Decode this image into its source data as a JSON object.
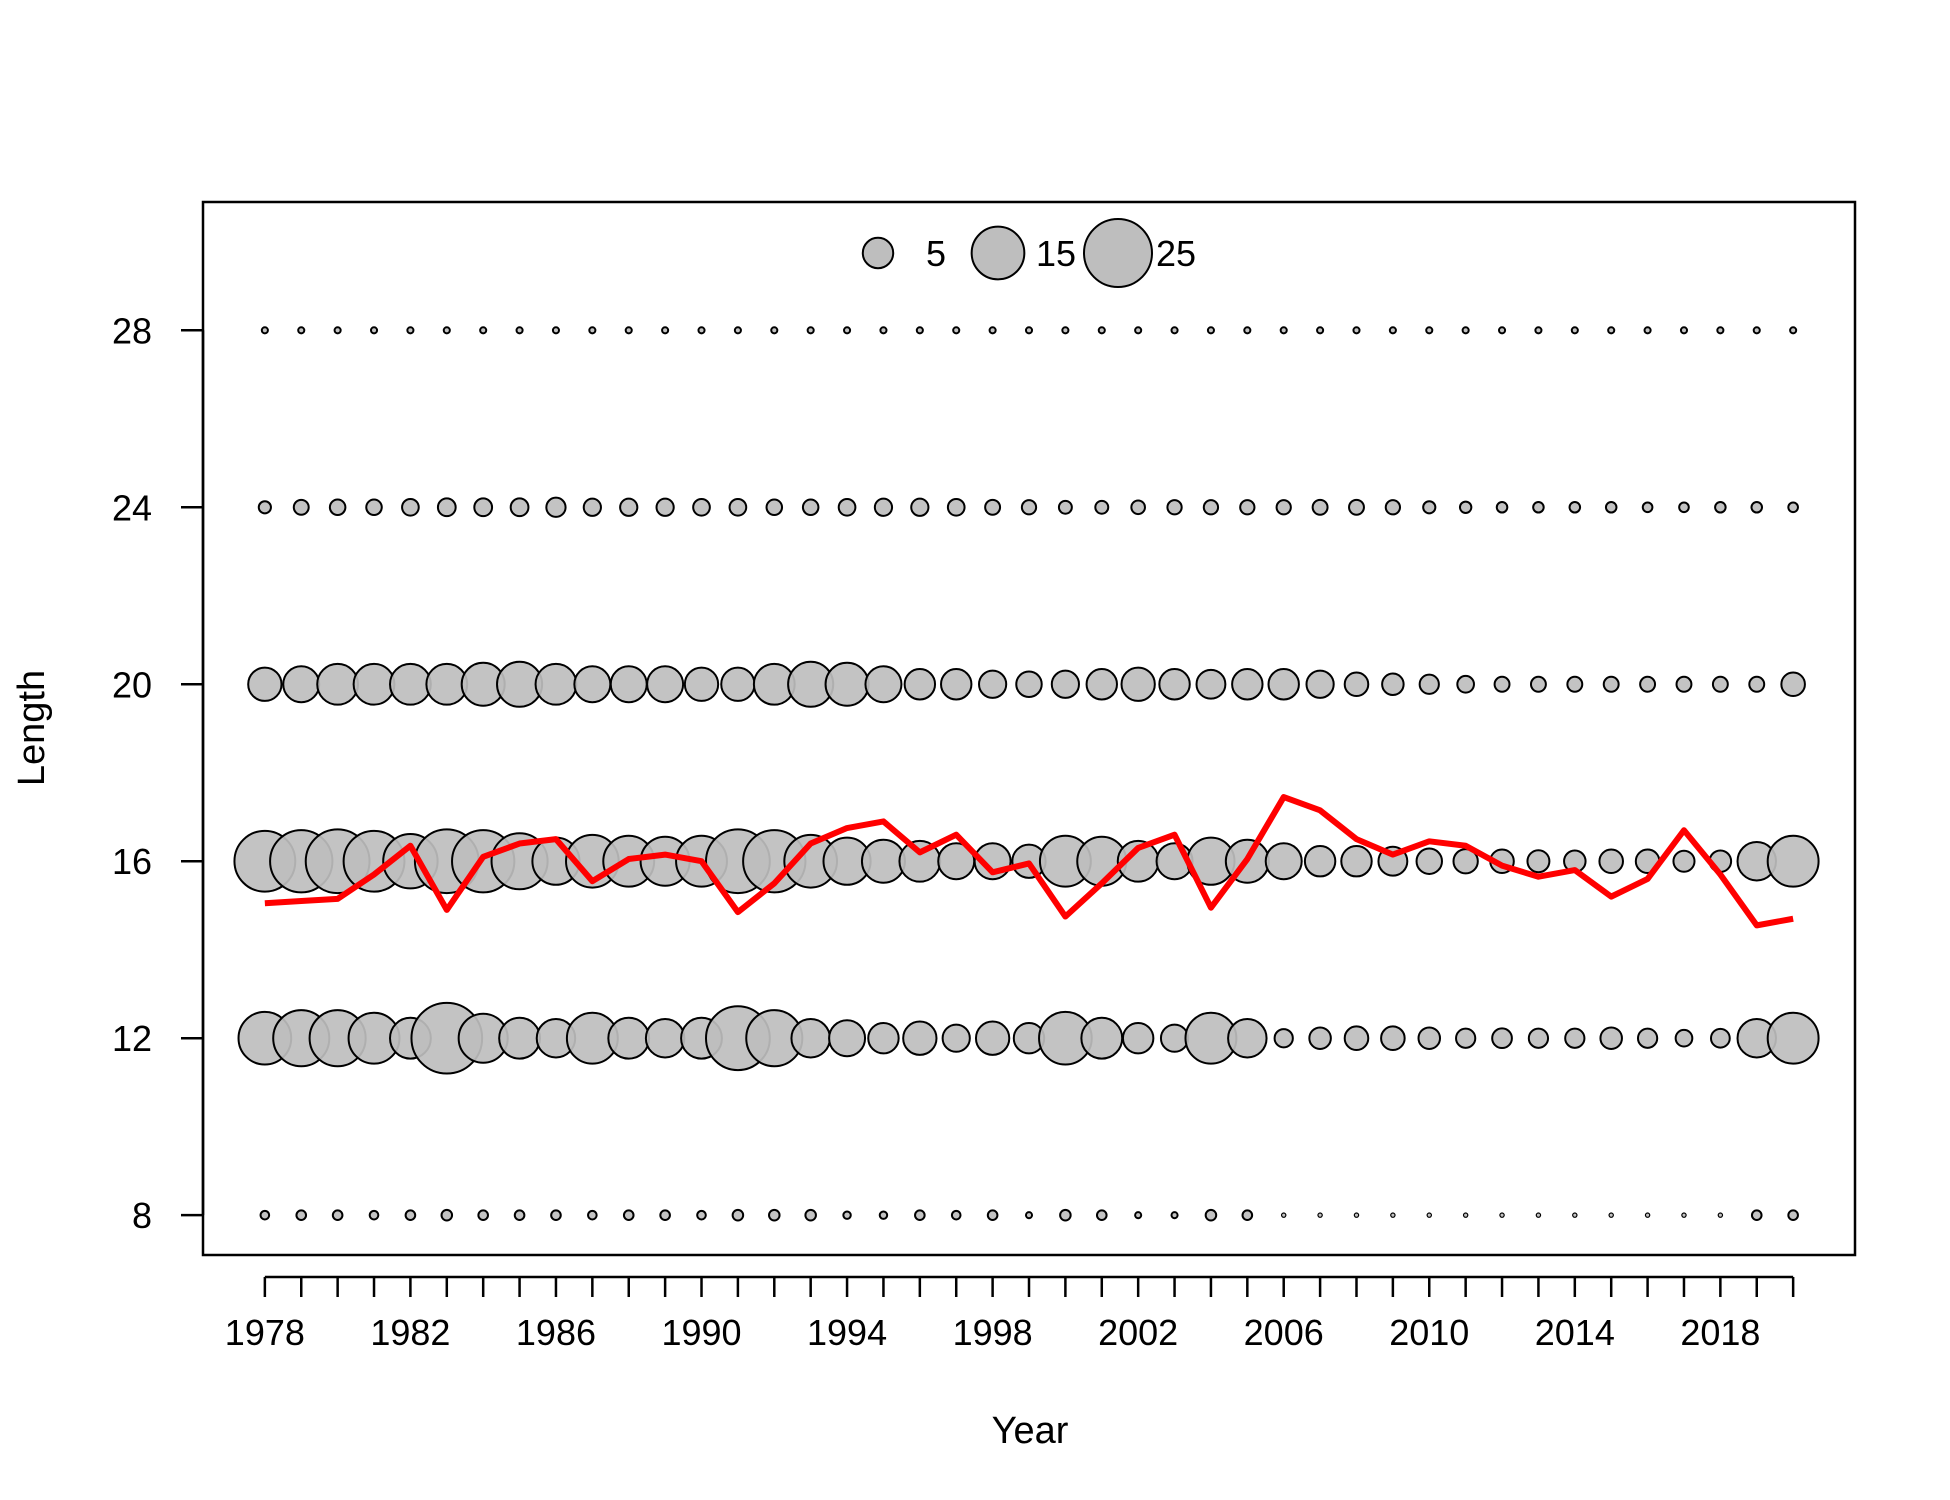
{
  "chart_data": {
    "type": "scatter",
    "title": "",
    "xlabel": "Year",
    "ylabel": "Length",
    "xlim": [
      1976.3,
      2021.7
    ],
    "ylim": [
      7.1,
      30.9
    ],
    "x_ticks": [
      1978,
      1982,
      1986,
      1990,
      1994,
      1998,
      2002,
      2006,
      2010,
      2014,
      2018
    ],
    "y_ticks": [
      8,
      12,
      16,
      20,
      24,
      28
    ],
    "legend": {
      "placement": "top-center",
      "values": [
        5,
        15,
        25
      ],
      "labels": [
        "5",
        "15",
        "25"
      ]
    },
    "grid": false,
    "colors": {
      "bubble_fill": "#bebebe",
      "bubble_stroke": "#000000",
      "line": "#ff0000"
    },
    "years": [
      1978,
      1979,
      1980,
      1981,
      1982,
      1983,
      1984,
      1985,
      1986,
      1987,
      1988,
      1989,
      1990,
      1991,
      1992,
      1993,
      1994,
      1995,
      1996,
      1997,
      1998,
      1999,
      2000,
      2001,
      2002,
      2003,
      2004,
      2005,
      2006,
      2007,
      2008,
      2009,
      2010,
      2011,
      2012,
      2013,
      2014,
      2015,
      2016,
      2017,
      2018,
      2019,
      2020
    ],
    "length_bins": [
      8,
      12,
      16,
      20,
      24,
      28
    ],
    "bubble_series": [
      {
        "length": 28,
        "values": [
          0.2,
          0.2,
          0.2,
          0.2,
          0.2,
          0.2,
          0.2,
          0.2,
          0.2,
          0.2,
          0.2,
          0.2,
          0.2,
          0.2,
          0.2,
          0.2,
          0.2,
          0.2,
          0.2,
          0.2,
          0.2,
          0.2,
          0.2,
          0.2,
          0.2,
          0.2,
          0.2,
          0.2,
          0.2,
          0.2,
          0.2,
          0.2,
          0.2,
          0.2,
          0.2,
          0.2,
          0.2,
          0.2,
          0.2,
          0.2,
          0.2,
          0.2,
          0.2
        ]
      },
      {
        "length": 24,
        "values": [
          0.8,
          1.2,
          1.3,
          1.3,
          1.5,
          1.7,
          1.7,
          1.7,
          2.0,
          1.6,
          1.6,
          1.6,
          1.5,
          1.5,
          1.3,
          1.3,
          1.5,
          1.6,
          1.6,
          1.5,
          1.2,
          1.1,
          0.9,
          0.9,
          1.0,
          1.1,
          1.1,
          1.1,
          1.1,
          1.2,
          1.2,
          1.1,
          0.8,
          0.7,
          0.6,
          0.6,
          0.6,
          0.6,
          0.5,
          0.5,
          0.6,
          0.6,
          0.5
        ]
      },
      {
        "length": 20,
        "values": [
          6,
          7,
          9,
          9,
          9,
          9,
          10,
          11,
          9,
          7,
          7,
          7,
          6,
          6,
          9,
          11,
          10,
          7,
          5,
          5,
          4,
          3.5,
          4,
          5,
          6,
          5,
          4.5,
          5,
          5,
          4,
          3,
          2.5,
          2,
          1.5,
          1.2,
          1.2,
          1.2,
          1.2,
          1.2,
          1.2,
          1.2,
          1.2,
          3
        ]
      },
      {
        "length": 16,
        "values": [
          20,
          21,
          22,
          20,
          16,
          22,
          21,
          17,
          12,
          15,
          14,
          13,
          14,
          22,
          21,
          15,
          12,
          10,
          9,
          7,
          7,
          6,
          14,
          13,
          9,
          7,
          12,
          10,
          7,
          5,
          5,
          4.5,
          3.5,
          3.2,
          3,
          2.6,
          2.5,
          3,
          3,
          2.4,
          2.5,
          8,
          14
        ]
      },
      {
        "length": 12,
        "values": [
          15,
          17,
          17,
          14,
          9,
          27,
          13,
          9,
          8,
          14,
          9,
          8,
          9,
          22,
          17,
          8,
          7,
          5,
          6,
          4,
          6,
          5,
          15,
          9,
          5,
          4,
          14,
          8,
          1.8,
          2.5,
          3,
          3,
          2.5,
          2,
          2.1,
          2,
          2,
          2.5,
          2,
          1.5,
          1.9,
          8,
          14
        ]
      },
      {
        "length": 8,
        "values": [
          0.4,
          0.5,
          0.5,
          0.4,
          0.5,
          0.6,
          0.5,
          0.5,
          0.5,
          0.4,
          0.5,
          0.5,
          0.4,
          0.6,
          0.6,
          0.6,
          0.3,
          0.3,
          0.5,
          0.4,
          0.5,
          0.2,
          0.6,
          0.5,
          0.2,
          0.2,
          0.6,
          0.5,
          0.1,
          0.1,
          0.1,
          0.1,
          0.1,
          0.1,
          0.1,
          0.1,
          0.1,
          0.1,
          0.1,
          0.1,
          0.1,
          0.5,
          0.5
        ]
      }
    ],
    "line_series": {
      "values": [
        15.05,
        15.1,
        15.15,
        15.7,
        16.35,
        14.9,
        16.1,
        16.4,
        16.5,
        15.55,
        16.05,
        16.15,
        16.0,
        14.85,
        15.5,
        16.4,
        16.75,
        16.9,
        16.2,
        16.6,
        15.75,
        15.95,
        14.75,
        15.5,
        16.3,
        16.6,
        14.95,
        16.05,
        17.45,
        17.15,
        16.5,
        16.15,
        16.45,
        16.35,
        15.9,
        15.65,
        15.8,
        15.2,
        15.6,
        16.7,
        15.7,
        14.55,
        14.7
      ]
    }
  }
}
